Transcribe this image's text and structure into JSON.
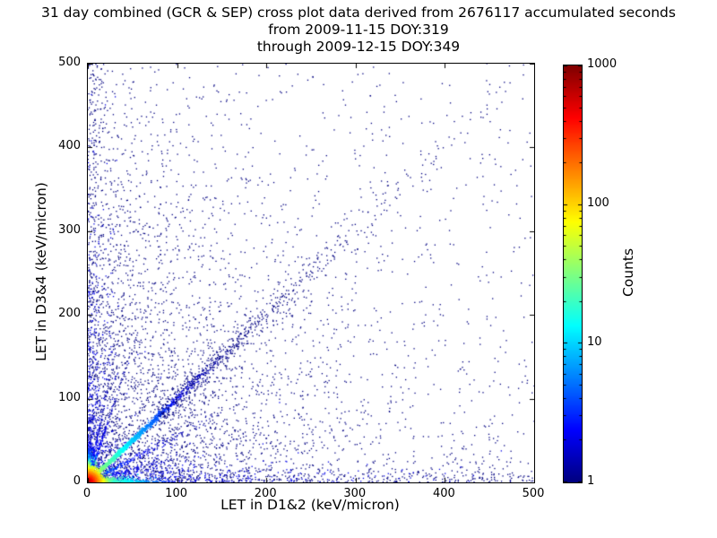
{
  "chart_data": {
    "type": "scatter",
    "title_lines": [
      "31 day combined (GCR & SEP) cross plot data derived from 2676117 accumulated seconds",
      "from 2009-11-15 DOY:319",
      "through 2009-12-15 DOY:349"
    ],
    "xlabel": "LET in D1&2 (keV/micron)",
    "ylabel": "LET in D3&4 (keV/micron)",
    "xlim": [
      0,
      500
    ],
    "ylim": [
      0,
      500
    ],
    "xticks": [
      0,
      100,
      200,
      300,
      400,
      500
    ],
    "yticks": [
      0,
      100,
      200,
      300,
      400,
      500
    ],
    "grid": false,
    "background": "#ffffff",
    "axis_color": "#000000",
    "colorbar": {
      "label": "Counts",
      "scale": "log",
      "range": [
        1,
        1000
      ],
      "ticks": [
        1,
        10,
        100,
        1000
      ],
      "colormap": "jet",
      "colormap_stops": [
        {
          "pos": 0.0,
          "hex": "#000080"
        },
        {
          "pos": 0.125,
          "hex": "#0000ff"
        },
        {
          "pos": 0.375,
          "hex": "#00ffff"
        },
        {
          "pos": 0.625,
          "hex": "#ffff00"
        },
        {
          "pos": 0.875,
          "hex": "#ff0000"
        },
        {
          "pos": 1.0,
          "hex": "#800000"
        }
      ]
    },
    "seed": 42,
    "point_clusters": [
      {
        "name": "background-lower-left",
        "type": "exp2d",
        "n": 3200,
        "sx": 120,
        "sy": 170,
        "cb": 1,
        "cs": 0,
        "by": "r"
      },
      {
        "name": "background-uniform",
        "type": "uniform",
        "n": 620,
        "cb": 1,
        "cs": 0,
        "by": "r"
      },
      {
        "name": "left-column-speckle",
        "type": "xexp_yuniform",
        "n": 380,
        "sx": 14,
        "cb": 1,
        "cs": 0,
        "by": "r"
      },
      {
        "name": "bottom-row-speckle",
        "type": "xuniform_yexp",
        "n": 380,
        "sy": 9,
        "cb": 1,
        "cs": 0,
        "by": "r"
      },
      {
        "name": "left-band",
        "type": "exp2d",
        "n": 520,
        "sx": 11,
        "sy": 95,
        "cb": 2,
        "cs": 0,
        "by": "r"
      },
      {
        "name": "bottom-band",
        "type": "exp2d",
        "n": 520,
        "sx": 95,
        "sy": 11,
        "cb": 2,
        "cs": 0,
        "by": "r"
      },
      {
        "name": "main-diagonal",
        "type": "diag",
        "n": 2100,
        "slope": 1.0,
        "tScale": 46,
        "tOffset": 0,
        "jBase": 0.8,
        "jGrow": 0.02,
        "cb": 55,
        "cs": 38,
        "by": "r"
      },
      {
        "name": "upper-diagonal-band",
        "type": "diag",
        "n": 520,
        "slope": 1.0,
        "tScale": 130,
        "tOffset": 80,
        "jBase": 9,
        "jGrow": 0.01,
        "cb": 1,
        "cs": 0,
        "by": "r"
      },
      {
        "name": "steep-streak-a",
        "type": "diag",
        "n": 230,
        "slope": 3.2,
        "tScale": 16,
        "tOffset": 0,
        "jBase": 1.0,
        "jGrow": 0.02,
        "cb": 4,
        "cs": 45,
        "by": "r"
      },
      {
        "name": "steep-streak-b",
        "type": "diag",
        "n": 170,
        "slope": 5.0,
        "tScale": 11,
        "tOffset": 0,
        "jBase": 1.0,
        "jGrow": 0.02,
        "cb": 3,
        "cs": 45,
        "by": "r"
      },
      {
        "name": "shallow-streak-a",
        "type": "diag",
        "n": 230,
        "slope": 0.55,
        "tScale": 55,
        "tOffset": 0,
        "jBase": 1.0,
        "jGrow": 0.02,
        "cb": 5,
        "cs": 50,
        "by": "r"
      },
      {
        "name": "shallow-streak-b",
        "type": "diag",
        "n": 150,
        "slope": 0.3,
        "tScale": 60,
        "tOffset": 0,
        "jBase": 1.0,
        "jGrow": 0.02,
        "cb": 3,
        "cs": 50,
        "by": "r"
      },
      {
        "name": "bottom-edge-bright",
        "type": "exp2d",
        "n": 1200,
        "sx": 22,
        "sy": 1.6,
        "cb": 70,
        "cs": 26,
        "by": "x"
      },
      {
        "name": "left-edge-bright",
        "type": "exp2d",
        "n": 850,
        "sx": 1.6,
        "sy": 13,
        "cb": 45,
        "cs": 13,
        "by": "y"
      },
      {
        "name": "corner-hot-core",
        "type": "exp2d",
        "n": 3200,
        "sx": 4.5,
        "sy": 4.5,
        "cb": 900,
        "cs": 7,
        "by": "r"
      }
    ]
  }
}
